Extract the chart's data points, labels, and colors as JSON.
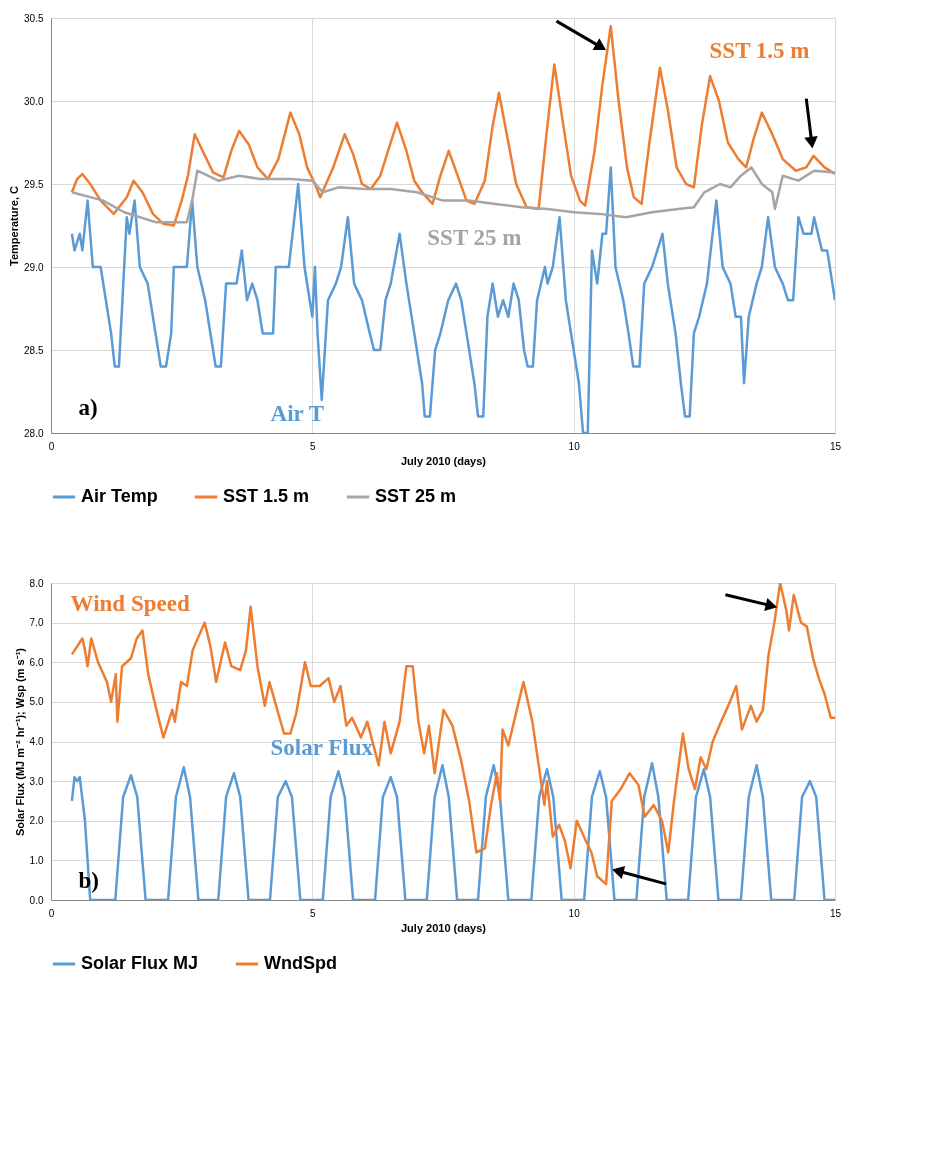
{
  "chart_data": [
    {
      "type": "line",
      "xlabel": "July 2010 (days)",
      "ylabel": "Temperature, C",
      "xlim": [
        0,
        15
      ],
      "xticks": [
        0,
        5,
        10,
        15
      ],
      "ylim": [
        28,
        30.5
      ],
      "yticks": [
        {
          "value": 28,
          "label": "28.0"
        },
        {
          "value": 28.5,
          "label": "28.5"
        },
        {
          "value": 29,
          "label": "29.0"
        },
        {
          "value": 29.5,
          "label": "29.5"
        },
        {
          "value": 30,
          "label": "30.0"
        },
        {
          "value": 30.5,
          "label": "30.5"
        }
      ],
      "grid": true,
      "legend": "bottom",
      "series": [
        {
          "name": "Air Temp",
          "color": "#5b9bd5",
          "x": [
            0.4,
            0.45,
            0.55,
            0.6,
            0.7,
            0.8,
            0.95,
            1.05,
            1.15,
            1.22,
            1.3,
            1.4,
            1.45,
            1.5,
            1.6,
            1.7,
            1.85,
            2.0,
            2.1,
            2.2,
            2.3,
            2.35,
            2.6,
            2.7,
            2.8,
            2.95,
            3.1,
            3.15,
            3.25,
            3.35,
            3.55,
            3.65,
            3.75,
            3.85,
            3.95,
            4.05,
            4.25,
            4.3,
            4.55,
            4.73,
            4.85,
            5.0,
            5.05,
            5.1,
            5.18,
            5.3,
            5.45,
            5.55,
            5.68,
            5.8,
            5.95,
            6.1,
            6.18,
            6.3,
            6.4,
            6.5,
            6.67,
            6.8,
            6.95,
            7.1,
            7.15,
            7.25,
            7.35,
            7.45,
            7.6,
            7.75,
            7.85,
            7.95,
            8.1,
            8.17,
            8.27,
            8.35,
            8.45,
            8.55,
            8.65,
            8.75,
            8.85,
            8.95,
            9.05,
            9.12,
            9.22,
            9.3,
            9.45,
            9.5,
            9.6,
            9.73,
            9.85,
            10.0,
            10.1,
            10.18,
            10.27,
            10.35,
            10.45,
            10.55,
            10.62,
            10.71,
            10.8,
            10.95,
            11.05,
            11.14,
            11.26,
            11.35,
            11.5,
            11.6,
            11.7,
            11.8,
            11.95,
            12.05,
            12.13,
            12.22,
            12.3,
            12.4,
            12.55,
            12.73,
            12.85,
            13.0,
            13.1,
            13.2,
            13.26,
            13.35,
            13.5,
            13.6,
            13.72,
            13.85,
            14.0,
            14.1,
            14.2,
            14.3,
            14.4,
            14.55,
            14.6,
            14.75,
            14.85,
            14.95,
            15.0
          ],
          "values": [
            29.2,
            29.1,
            29.2,
            29.1,
            29.4,
            29.0,
            29.0,
            28.8,
            28.6,
            28.4,
            28.4,
            29.0,
            29.3,
            29.2,
            29.4,
            29.0,
            28.9,
            28.6,
            28.4,
            28.4,
            28.6,
            29.0,
            29.0,
            29.4,
            29.0,
            28.8,
            28.5,
            28.4,
            28.4,
            28.9,
            28.9,
            29.1,
            28.8,
            28.9,
            28.8,
            28.6,
            28.6,
            29.0,
            29.0,
            29.5,
            29.0,
            28.7,
            29.0,
            28.6,
            28.2,
            28.8,
            28.9,
            29.0,
            29.3,
            28.9,
            28.8,
            28.6,
            28.5,
            28.5,
            28.8,
            28.9,
            29.2,
            28.9,
            28.6,
            28.3,
            28.1,
            28.1,
            28.5,
            28.6,
            28.8,
            28.9,
            28.8,
            28.6,
            28.3,
            28.1,
            28.1,
            28.7,
            28.9,
            28.7,
            28.8,
            28.7,
            28.9,
            28.8,
            28.5,
            28.4,
            28.4,
            28.8,
            29.0,
            28.9,
            29.0,
            29.3,
            28.8,
            28.5,
            28.3,
            28.0,
            28.0,
            29.1,
            28.9,
            29.2,
            29.2,
            29.6,
            29.0,
            28.8,
            28.6,
            28.4,
            28.4,
            28.9,
            29.0,
            29.1,
            29.2,
            28.9,
            28.6,
            28.3,
            28.1,
            28.1,
            28.6,
            28.7,
            28.9,
            29.4,
            29.0,
            28.9,
            28.7,
            28.7,
            28.3,
            28.7,
            28.9,
            29.0,
            29.3,
            29.0,
            28.9,
            28.8,
            28.8,
            29.3,
            29.2,
            29.2,
            29.3,
            29.1,
            29.1,
            28.9,
            28.8
          ]
        },
        {
          "name": "SST 1.5 m",
          "color": "#ed7d31",
          "x": [
            0.4,
            0.5,
            0.6,
            0.75,
            0.95,
            1.2,
            1.45,
            1.58,
            1.75,
            1.95,
            2.15,
            2.35,
            2.5,
            2.62,
            2.75,
            2.9,
            3.1,
            3.3,
            3.45,
            3.6,
            3.78,
            3.95,
            4.15,
            4.35,
            4.58,
            4.75,
            4.9,
            5.05,
            5.15,
            5.4,
            5.62,
            5.78,
            5.95,
            6.12,
            6.3,
            6.62,
            6.8,
            6.95,
            7.1,
            7.3,
            7.45,
            7.61,
            7.78,
            7.95,
            8.1,
            8.3,
            8.45,
            8.57,
            8.72,
            8.9,
            9.1,
            9.33,
            9.48,
            9.63,
            9.78,
            9.95,
            10.12,
            10.22,
            10.4,
            10.55,
            10.71,
            10.86,
            11.02,
            11.15,
            11.3,
            11.45,
            11.65,
            11.8,
            11.97,
            12.15,
            12.3,
            12.45,
            12.61,
            12.78,
            12.95,
            13.15,
            13.3,
            13.45,
            13.6,
            13.8,
            14.0,
            14.25,
            14.45,
            14.59,
            14.8,
            15.0
          ],
          "values": [
            29.45,
            29.53,
            29.56,
            29.5,
            29.4,
            29.32,
            29.42,
            29.52,
            29.45,
            29.32,
            29.26,
            29.25,
            29.4,
            29.55,
            29.8,
            29.7,
            29.57,
            29.54,
            29.7,
            29.82,
            29.74,
            29.6,
            29.53,
            29.65,
            29.93,
            29.8,
            29.6,
            29.5,
            29.42,
            29.6,
            29.8,
            29.68,
            29.5,
            29.47,
            29.55,
            29.87,
            29.7,
            29.52,
            29.45,
            29.38,
            29.55,
            29.7,
            29.55,
            29.4,
            29.38,
            29.52,
            29.85,
            30.05,
            29.8,
            29.5,
            29.36,
            29.35,
            29.8,
            30.22,
            29.9,
            29.55,
            29.4,
            29.37,
            29.7,
            30.1,
            30.45,
            30.0,
            29.6,
            29.42,
            29.38,
            29.75,
            30.2,
            29.95,
            29.6,
            29.5,
            29.48,
            29.85,
            30.15,
            30.0,
            29.75,
            29.65,
            29.6,
            29.78,
            29.93,
            29.8,
            29.65,
            29.58,
            29.6,
            29.67,
            29.6,
            29.56
          ]
        },
        {
          "name": "SST 25 m",
          "color": "#a5a5a5",
          "x": [
            0.4,
            1.0,
            1.4,
            2.0,
            2.6,
            2.7,
            2.8,
            3.2,
            3.6,
            4.0,
            4.6,
            5.0,
            5.2,
            5.5,
            6.0,
            6.5,
            7.0,
            7.5,
            8.0,
            8.5,
            9.0,
            9.5,
            10.0,
            10.5,
            11.0,
            11.5,
            12.0,
            12.3,
            12.5,
            12.8,
            13.0,
            13.2,
            13.4,
            13.6,
            13.8,
            13.85,
            14.0,
            14.3,
            14.6,
            15.0
          ],
          "values": [
            29.45,
            29.4,
            29.33,
            29.27,
            29.27,
            29.4,
            29.58,
            29.52,
            29.55,
            29.53,
            29.53,
            29.52,
            29.45,
            29.48,
            29.47,
            29.47,
            29.45,
            29.4,
            29.4,
            29.38,
            29.36,
            29.35,
            29.33,
            29.32,
            29.3,
            29.33,
            29.35,
            29.36,
            29.45,
            29.5,
            29.48,
            29.55,
            29.6,
            29.5,
            29.45,
            29.35,
            29.55,
            29.52,
            29.58,
            29.57
          ]
        }
      ],
      "annotations": [
        "SST 1.5 m",
        "SST 25 m",
        "Air T",
        "a)"
      ]
    },
    {
      "type": "line",
      "xlabel": "July 2010 (days)",
      "ylabel": "Solar Flux (MJ m⁻² hr⁻¹); Wsp (m s⁻¹)",
      "xlim": [
        0,
        15
      ],
      "xticks": [
        0,
        5,
        10,
        15
      ],
      "ylim": [
        0,
        8
      ],
      "yticks": [
        {
          "value": 0,
          "label": "0.0"
        },
        {
          "value": 1,
          "label": "1.0"
        },
        {
          "value": 2,
          "label": "2.0"
        },
        {
          "value": 3,
          "label": "3.0"
        },
        {
          "value": 4,
          "label": "4.0"
        },
        {
          "value": 5,
          "label": "5.0"
        },
        {
          "value": 6,
          "label": "6.0"
        },
        {
          "value": 7,
          "label": "7.0"
        },
        {
          "value": 8,
          "label": "8.0"
        }
      ],
      "grid": true,
      "legend": "bottom",
      "series": [
        {
          "name": "Solar Flux MJ",
          "color": "#5b9bd5",
          "x": [
            0.4,
            0.45,
            0.5,
            0.55,
            0.65,
            0.75,
            1.23,
            1.38,
            1.53,
            1.65,
            1.81,
            2.24,
            2.39,
            2.54,
            2.66,
            2.82,
            3.2,
            3.35,
            3.5,
            3.62,
            3.78,
            4.19,
            4.34,
            4.49,
            4.61,
            4.77,
            5.2,
            5.35,
            5.5,
            5.62,
            5.78,
            6.2,
            6.35,
            6.5,
            6.62,
            6.78,
            7.19,
            7.34,
            7.49,
            7.61,
            7.77,
            8.17,
            8.32,
            8.47,
            8.59,
            8.75,
            9.19,
            9.34,
            9.49,
            9.61,
            9.77,
            10.2,
            10.35,
            10.5,
            10.62,
            10.78,
            11.2,
            11.35,
            11.5,
            11.62,
            11.78,
            12.19,
            12.34,
            12.49,
            12.61,
            12.77,
            13.2,
            13.35,
            13.5,
            13.62,
            13.78,
            14.22,
            14.37,
            14.52,
            14.64,
            14.8,
            15.0
          ],
          "values": [
            2.5,
            3.1,
            3.0,
            3.1,
            2.0,
            0,
            0,
            2.6,
            3.15,
            2.6,
            0,
            0,
            2.6,
            3.35,
            2.6,
            0,
            0,
            2.6,
            3.2,
            2.6,
            0,
            0,
            2.6,
            3.0,
            2.6,
            0,
            0,
            2.6,
            3.25,
            2.6,
            0,
            0,
            2.6,
            3.1,
            2.6,
            0,
            0,
            2.6,
            3.4,
            2.6,
            0,
            0,
            2.6,
            3.4,
            2.6,
            0,
            0,
            2.6,
            3.3,
            2.6,
            0,
            0,
            2.6,
            3.25,
            2.6,
            0,
            0,
            2.6,
            3.45,
            2.6,
            0,
            0,
            2.6,
            3.3,
            2.6,
            0,
            0,
            2.6,
            3.4,
            2.6,
            0,
            0,
            2.6,
            3.0,
            2.6,
            0,
            0
          ]
        },
        {
          "name": "WndSpd",
          "color": "#ed7d31",
          "x": [
            0.4,
            0.6,
            0.65,
            0.7,
            0.77,
            0.9,
            1.07,
            1.15,
            1.24,
            1.27,
            1.36,
            1.53,
            1.64,
            1.75,
            1.86,
            1.98,
            2.15,
            2.32,
            2.37,
            2.49,
            2.6,
            2.71,
            2.94,
            3.05,
            3.16,
            3.33,
            3.45,
            3.62,
            3.73,
            3.82,
            3.95,
            4.09,
            4.18,
            4.35,
            4.46,
            4.58,
            4.69,
            4.86,
            4.97,
            5.14,
            5.31,
            5.42,
            5.54,
            5.65,
            5.76,
            5.93,
            6.05,
            6.27,
            6.38,
            6.5,
            6.67,
            6.8,
            6.92,
            7.03,
            7.14,
            7.23,
            7.34,
            7.51,
            7.68,
            7.85,
            8.0,
            8.14,
            8.3,
            8.42,
            8.53,
            8.59,
            8.64,
            8.75,
            8.93,
            9.04,
            9.21,
            9.32,
            9.44,
            9.49,
            9.6,
            9.72,
            9.83,
            9.94,
            10.06,
            10.23,
            10.34,
            10.45,
            10.62,
            10.73,
            10.9,
            11.07,
            11.24,
            11.36,
            11.53,
            11.69,
            11.81,
            11.92,
            12.09,
            12.2,
            12.32,
            12.43,
            12.54,
            12.66,
            12.82,
            12.99,
            13.11,
            13.22,
            13.39,
            13.5,
            13.62,
            13.73,
            13.84,
            13.95,
            14.07,
            14.12,
            14.21,
            14.35,
            14.46,
            14.58,
            14.69,
            14.8,
            14.92,
            15.0
          ],
          "values": [
            6.2,
            6.6,
            6.3,
            5.9,
            6.6,
            6.0,
            5.5,
            5.0,
            5.7,
            4.5,
            5.9,
            6.1,
            6.6,
            6.8,
            5.7,
            5.0,
            4.1,
            4.8,
            4.5,
            5.5,
            5.4,
            6.3,
            7.0,
            6.4,
            5.5,
            6.5,
            5.9,
            5.8,
            6.3,
            7.4,
            5.9,
            4.9,
            5.5,
            4.7,
            4.2,
            4.2,
            4.7,
            6.0,
            5.4,
            5.4,
            5.6,
            5.0,
            5.4,
            4.4,
            4.6,
            4.1,
            4.5,
            3.4,
            4.5,
            3.7,
            4.5,
            5.9,
            5.9,
            4.5,
            3.7,
            4.4,
            3.2,
            4.8,
            4.4,
            3.5,
            2.5,
            1.2,
            1.3,
            2.4,
            3.2,
            2.5,
            4.3,
            3.9,
            4.9,
            5.5,
            4.5,
            3.5,
            2.4,
            3.0,
            1.6,
            1.9,
            1.5,
            0.8,
            2.0,
            1.5,
            1.2,
            0.6,
            0.4,
            2.5,
            2.8,
            3.2,
            2.9,
            2.1,
            2.4,
            2.0,
            1.2,
            2.5,
            4.2,
            3.3,
            2.8,
            3.6,
            3.3,
            4.0,
            4.5,
            5.0,
            5.4,
            4.3,
            4.9,
            4.5,
            4.8,
            6.2,
            7.0,
            8.0,
            7.3,
            6.8,
            7.7,
            7.0,
            6.9,
            6.1,
            5.6,
            5.2,
            4.6,
            4.6
          ]
        }
      ],
      "annotations": [
        "Wind Speed",
        "Solar Flux",
        "b)"
      ]
    }
  ]
}
